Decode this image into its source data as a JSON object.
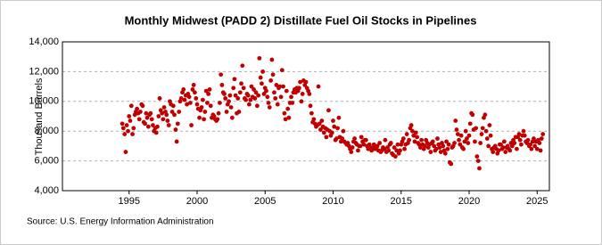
{
  "chart_data": {
    "type": "scatter",
    "title": "Monthly Midwest (PADD 2) Distillate Fuel Oil Stocks in Pipelines",
    "y_label": "Thousand Barrels",
    "source": "Source: U.S. Energy Information Administration",
    "color": "#c00000",
    "grid": true,
    "xlim": [
      1990.1,
      2025.9
    ],
    "ylim": [
      4000,
      14000
    ],
    "xticks": [
      1995,
      2000,
      2005,
      2010,
      2015,
      2020,
      2025
    ],
    "yticks": [
      {
        "value": 4000,
        "label": "4,000"
      },
      {
        "value": 6000,
        "label": "6,000"
      },
      {
        "value": 8000,
        "label": "8,000"
      },
      {
        "value": 10000,
        "label": "10,000"
      },
      {
        "value": 12000,
        "label": "12,000"
      },
      {
        "value": 14000,
        "label": "14,000"
      }
    ],
    "x": [
      1994.5,
      1994.58,
      1994.67,
      1994.75,
      1994.83,
      1994.92,
      1995.0,
      1995.08,
      1995.17,
      1995.25,
      1995.33,
      1995.42,
      1995.5,
      1995.58,
      1995.67,
      1995.75,
      1995.83,
      1995.92,
      1996.0,
      1996.08,
      1996.17,
      1996.25,
      1996.33,
      1996.42,
      1996.5,
      1996.58,
      1996.67,
      1996.75,
      1996.83,
      1996.92,
      1997.0,
      1997.08,
      1997.17,
      1997.25,
      1997.33,
      1997.42,
      1997.5,
      1997.58,
      1997.67,
      1997.75,
      1997.83,
      1997.92,
      1998.0,
      1998.08,
      1998.17,
      1998.25,
      1998.33,
      1998.42,
      1998.5,
      1998.58,
      1998.67,
      1998.75,
      1998.83,
      1998.92,
      1999.0,
      1999.08,
      1999.17,
      1999.25,
      1999.33,
      1999.42,
      1999.5,
      1999.58,
      1999.67,
      1999.75,
      1999.83,
      1999.92,
      2000.0,
      2000.08,
      2000.17,
      2000.25,
      2000.33,
      2000.42,
      2000.5,
      2000.58,
      2000.67,
      2000.75,
      2000.83,
      2000.92,
      2001.0,
      2001.08,
      2001.17,
      2001.25,
      2001.33,
      2001.42,
      2001.5,
      2001.58,
      2001.67,
      2001.75,
      2001.83,
      2001.92,
      2002.0,
      2002.08,
      2002.17,
      2002.25,
      2002.33,
      2002.42,
      2002.5,
      2002.58,
      2002.67,
      2002.75,
      2002.83,
      2002.92,
      2003.0,
      2003.08,
      2003.17,
      2003.25,
      2003.33,
      2003.42,
      2003.5,
      2003.58,
      2003.67,
      2003.75,
      2003.83,
      2003.92,
      2004.0,
      2004.08,
      2004.17,
      2004.25,
      2004.33,
      2004.42,
      2004.5,
      2004.58,
      2004.67,
      2004.75,
      2004.83,
      2004.92,
      2005.0,
      2005.08,
      2005.17,
      2005.25,
      2005.33,
      2005.42,
      2005.5,
      2005.58,
      2005.67,
      2005.75,
      2005.83,
      2005.92,
      2006.0,
      2006.08,
      2006.17,
      2006.25,
      2006.33,
      2006.42,
      2006.5,
      2006.58,
      2006.67,
      2006.75,
      2006.83,
      2006.92,
      2007.0,
      2007.08,
      2007.17,
      2007.25,
      2007.33,
      2007.42,
      2007.5,
      2007.58,
      2007.67,
      2007.75,
      2007.83,
      2007.92,
      2008.0,
      2008.08,
      2008.17,
      2008.25,
      2008.33,
      2008.42,
      2008.5,
      2008.58,
      2008.67,
      2008.75,
      2008.83,
      2008.92,
      2009.0,
      2009.08,
      2009.17,
      2009.25,
      2009.33,
      2009.42,
      2009.5,
      2009.58,
      2009.67,
      2009.75,
      2009.83,
      2009.92,
      2010.0,
      2010.08,
      2010.17,
      2010.25,
      2010.33,
      2010.42,
      2010.5,
      2010.58,
      2010.67,
      2010.75,
      2010.83,
      2010.92,
      2011.0,
      2011.08,
      2011.17,
      2011.25,
      2011.33,
      2011.42,
      2011.5,
      2011.58,
      2011.67,
      2011.75,
      2011.83,
      2011.92,
      2012.0,
      2012.08,
      2012.17,
      2012.25,
      2012.33,
      2012.42,
      2012.5,
      2012.58,
      2012.67,
      2012.75,
      2012.83,
      2012.92,
      2013.0,
      2013.08,
      2013.17,
      2013.25,
      2013.33,
      2013.42,
      2013.5,
      2013.58,
      2013.67,
      2013.75,
      2013.83,
      2013.92,
      2014.0,
      2014.08,
      2014.17,
      2014.25,
      2014.33,
      2014.42,
      2014.5,
      2014.58,
      2014.67,
      2014.75,
      2014.83,
      2014.92,
      2015.0,
      2015.08,
      2015.17,
      2015.25,
      2015.33,
      2015.42,
      2015.5,
      2015.58,
      2015.67,
      2015.75,
      2015.83,
      2015.92,
      2016.0,
      2016.08,
      2016.17,
      2016.25,
      2016.33,
      2016.42,
      2016.5,
      2016.58,
      2016.67,
      2016.75,
      2016.83,
      2016.92,
      2017.0,
      2017.08,
      2017.17,
      2017.25,
      2017.33,
      2017.42,
      2017.5,
      2017.58,
      2017.67,
      2017.75,
      2017.83,
      2017.92,
      2018.0,
      2018.08,
      2018.17,
      2018.25,
      2018.33,
      2018.42,
      2018.5,
      2018.58,
      2018.67,
      2018.75,
      2018.83,
      2018.92,
      2019.0,
      2019.08,
      2019.17,
      2019.25,
      2019.33,
      2019.42,
      2019.5,
      2019.58,
      2019.67,
      2019.75,
      2019.83,
      2019.92,
      2020.0,
      2020.08,
      2020.17,
      2020.25,
      2020.33,
      2020.42,
      2020.5,
      2020.58,
      2020.67,
      2020.75,
      2020.83,
      2020.92,
      2021.0,
      2021.08,
      2021.17,
      2021.25,
      2021.33,
      2021.42,
      2021.5,
      2021.58,
      2021.67,
      2021.75,
      2021.83,
      2021.92,
      2022.0,
      2022.08,
      2022.17,
      2022.25,
      2022.33,
      2022.42,
      2022.5,
      2022.58,
      2022.67,
      2022.75,
      2022.83,
      2022.92,
      2023.0,
      2023.08,
      2023.17,
      2023.25,
      2023.33,
      2023.42,
      2023.5,
      2023.58,
      2023.67,
      2023.75,
      2023.83,
      2023.92,
      2024.0,
      2024.08,
      2024.17,
      2024.25,
      2024.33,
      2024.42,
      2024.5,
      2024.58,
      2024.67,
      2024.75,
      2024.83,
      2024.92,
      2025.0,
      2025.08,
      2025.17,
      2025.25,
      2025.33,
      2025.42
    ],
    "values": [
      8500,
      8200,
      7800,
      6600,
      8400,
      8000,
      9000,
      8700,
      9700,
      7800,
      8200,
      9100,
      9300,
      9500,
      9200,
      8800,
      9300,
      9800,
      9700,
      8600,
      8500,
      9200,
      8900,
      8300,
      9100,
      9200,
      8800,
      8400,
      8000,
      8200,
      7900,
      8300,
      9000,
      10200,
      9400,
      9200,
      8800,
      9600,
      9300,
      9100,
      8700,
      8400,
      10000,
      9800,
      9300,
      9700,
      9100,
      8100,
      7300,
      8500,
      9300,
      10000,
      10200,
      10600,
      10800,
      10100,
      10400,
      9800,
      10500,
      10300,
      9900,
      8400,
      10800,
      11100,
      10600,
      10200,
      9800,
      9500,
      8900,
      9400,
      9600,
      10100,
      8800,
      9300,
      10700,
      9900,
      10500,
      10800,
      9700,
      8900,
      9100,
      9000,
      8800,
      8700,
      8800,
      9200,
      9900,
      11800,
      11100,
      10600,
      10500,
      10200,
      9300,
      9800,
      10000,
      10400,
      9600,
      8900,
      10900,
      11500,
      10400,
      9200,
      10200,
      9300,
      10600,
      11200,
      12400,
      10900,
      10200,
      10100,
      10500,
      10400,
      9800,
      10100,
      11000,
      10300,
      10800,
      10200,
      10600,
      9700,
      10400,
      12900,
      11600,
      11200,
      12000,
      10500,
      10900,
      10700,
      10300,
      9900,
      9600,
      11400,
      12800,
      11800,
      10600,
      10200,
      11100,
      9800,
      10900,
      11000,
      10300,
      12100,
      11000,
      9200,
      8800,
      10700,
      9500,
      8900,
      9900,
      10300,
      9900,
      10600,
      10800,
      10600,
      10900,
      10700,
      10900,
      11300,
      10000,
      10500,
      11400,
      11100,
      11300,
      10900,
      10700,
      10500,
      9700,
      9200,
      8600,
      8800,
      8500,
      8300,
      8400,
      11000,
      8500,
      8100,
      8700,
      8300,
      7900,
      8200,
      7600,
      8100,
      9400,
      8000,
      7700,
      7900,
      8700,
      8300,
      7400,
      7500,
      8200,
      8900,
      7600,
      7300,
      7500,
      8000,
      7300,
      7200,
      7100,
      7200,
      7000,
      6800,
      6600,
      6900,
      7300,
      7500,
      7200,
      7100,
      6700,
      7000,
      7000,
      7600,
      7300,
      7100,
      7400,
      7400,
      7000,
      6800,
      7100,
      6900,
      6700,
      6900,
      7100,
      6800,
      6900,
      7000,
      6700,
      7200,
      6600,
      6700,
      6900,
      6800,
      7400,
      6600,
      6900,
      6700,
      7100,
      7200,
      6500,
      6400,
      6900,
      6300,
      6700,
      7100,
      6500,
      6700,
      7100,
      7300,
      7500,
      6800,
      7100,
      7800,
      7200,
      7400,
      8200,
      8400,
      8000,
      7700,
      7300,
      7900,
      7600,
      7200,
      7100,
      6900,
      7400,
      7100,
      6800,
      7000,
      7400,
      7200,
      6900,
      7100,
      6600,
      7200,
      7300,
      7000,
      6700,
      6800,
      7500,
      7100,
      6900,
      6600,
      7200,
      7000,
      6700,
      6500,
      7300,
      6800,
      7100,
      5900,
      5800,
      6900,
      7000,
      7200,
      8700,
      8100,
      7800,
      7400,
      7100,
      7700,
      6900,
      6800,
      7300,
      8000,
      7500,
      7200,
      7700,
      8500,
      9200,
      9100,
      8100,
      7300,
      8200,
      6300,
      6000,
      5500,
      7200,
      7800,
      8200,
      8900,
      9100,
      8000,
      7500,
      7000,
      8400,
      7700,
      6800,
      6600,
      6900,
      7000,
      6800,
      6500,
      6700,
      7100,
      7100,
      6800,
      6900,
      7300,
      6600,
      6900,
      7000,
      6800,
      6700,
      7200,
      7000,
      7400,
      7200,
      7600,
      6800,
      7600,
      7800,
      7400,
      7100,
      7700,
      8000,
      7700,
      7300,
      7200,
      7400,
      7000,
      7100,
      6800,
      7300,
      7500,
      7000,
      7300,
      6800,
      7400,
      7200,
      6700,
      7500,
      7800
    ]
  }
}
